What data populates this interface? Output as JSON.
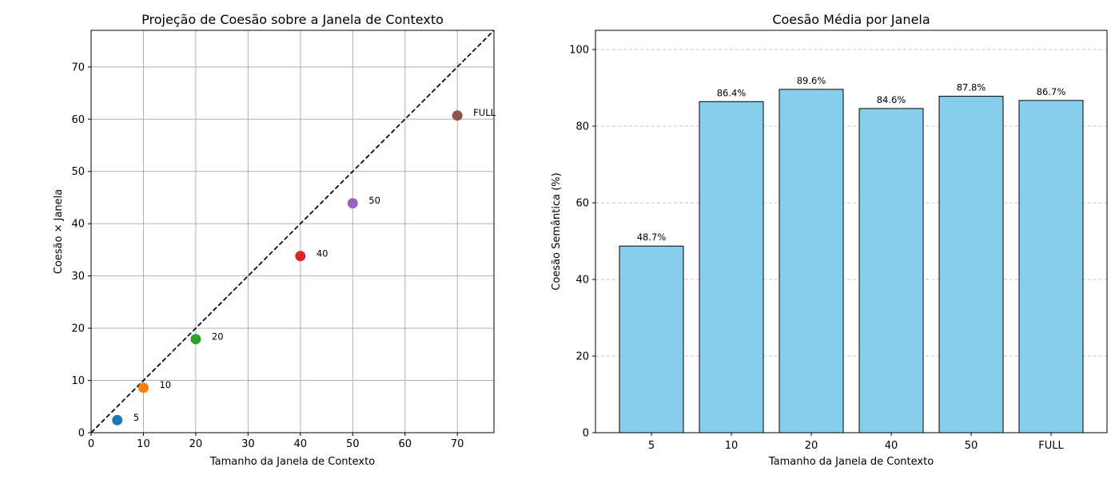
{
  "chart_data": [
    {
      "type": "scatter",
      "title": "Projeção de Coesão sobre a Janela de Contexto",
      "xlabel": "Tamanho da Janela de Contexto",
      "ylabel": "Coesão × Janela",
      "xlim": [
        0,
        77
      ],
      "ylim": [
        0,
        77
      ],
      "xticks": [
        "0",
        "10",
        "20",
        "30",
        "40",
        "50",
        "60",
        "70"
      ],
      "yticks": [
        "0",
        "10",
        "20",
        "30",
        "40",
        "50",
        "60",
        "70"
      ],
      "grid": true,
      "reference_line": "y = x",
      "points": [
        {
          "label": "5",
          "x": 5,
          "y": 2.4,
          "color": "#1f77b4"
        },
        {
          "label": "10",
          "x": 10,
          "y": 8.6,
          "color": "#ff7f0e"
        },
        {
          "label": "20",
          "x": 20,
          "y": 17.9,
          "color": "#2ca02c"
        },
        {
          "label": "40",
          "x": 40,
          "y": 33.8,
          "color": "#d62728"
        },
        {
          "label": "50",
          "x": 50,
          "y": 43.9,
          "color": "#9467bd"
        },
        {
          "label": "FULL",
          "x": 70,
          "y": 60.7,
          "color": "#8c564b"
        }
      ]
    },
    {
      "type": "bar",
      "title": "Coesão Média por Janela",
      "xlabel": "Tamanho da Janela de Contexto",
      "ylabel": "Coesão Semântica (%)",
      "categories": [
        "5",
        "10",
        "20",
        "40",
        "50",
        "FULL"
      ],
      "values": [
        48.7,
        86.4,
        89.6,
        84.6,
        87.8,
        86.7
      ],
      "data_labels": [
        "48.7%",
        "86.4%",
        "89.6%",
        "84.6%",
        "87.8%",
        "86.7%"
      ],
      "ylim": [
        0,
        105
      ],
      "yticks": [
        "0",
        "20",
        "40",
        "60",
        "80",
        "100"
      ],
      "grid": "y-dashed",
      "bar_color": "#87ceeb"
    }
  ]
}
